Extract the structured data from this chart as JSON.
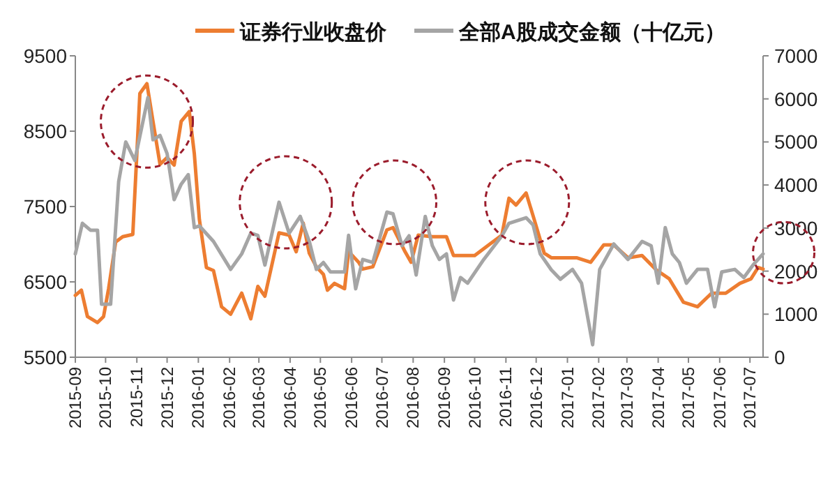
{
  "chart_data": {
    "type": "line",
    "legend": "top",
    "grid": false,
    "xlim": [
      "2015-09-01",
      "2017-07-14"
    ],
    "xticks": [
      "2015-09",
      "2015-10",
      "2015-11",
      "2015-12",
      "2016-01",
      "2016-02",
      "2016-03",
      "2016-04",
      "2016-05",
      "2016-06",
      "2016-07",
      "2016-08",
      "2016-09",
      "2016-10",
      "2016-11",
      "2016-12",
      "2017-01",
      "2017-02",
      "2017-03",
      "2017-04",
      "2017-05",
      "2017-06",
      "2017-07"
    ],
    "ylim": [
      5500,
      9500
    ],
    "yticks": [
      5500,
      6500,
      7500,
      8500,
      9500
    ],
    "y2lim": [
      0,
      7000
    ],
    "y2ticks": [
      0,
      1000,
      2000,
      3000,
      4000,
      5000,
      6000,
      7000
    ],
    "series": [
      {
        "name": "证券行业收盘价",
        "color": "#ed7d31",
        "x": [
          "2015-09-01",
          "2015-09-07",
          "2015-09-13",
          "2015-09-23",
          "2015-09-29",
          "2015-10-04",
          "2015-10-11",
          "2015-10-18",
          "2015-10-28",
          "2015-11-04",
          "2015-11-11",
          "2015-11-17",
          "2015-11-24",
          "2015-12-01",
          "2015-12-08",
          "2015-12-15",
          "2015-12-23",
          "2015-12-28",
          "2016-01-02",
          "2016-01-09",
          "2016-01-16",
          "2016-01-24",
          "2016-02-02",
          "2016-02-13",
          "2016-02-22",
          "2016-02-29",
          "2016-03-07",
          "2016-03-21",
          "2016-03-31",
          "2016-04-07",
          "2016-04-14",
          "2016-04-20",
          "2016-04-27",
          "2016-05-04",
          "2016-05-08",
          "2016-05-15",
          "2016-05-25",
          "2016-05-29",
          "2016-06-08",
          "2016-06-12",
          "2016-06-22",
          "2016-07-06",
          "2016-07-12",
          "2016-07-24",
          "2016-07-30",
          "2016-08-06",
          "2016-08-20",
          "2016-09-03",
          "2016-09-10",
          "2016-10-01",
          "2016-10-15",
          "2016-10-28",
          "2016-11-04",
          "2016-11-11",
          "2016-11-21",
          "2016-11-29",
          "2016-12-09",
          "2016-12-16",
          "2017-01-10",
          "2017-01-24",
          "2017-02-06",
          "2017-02-16",
          "2017-03-02",
          "2017-03-16",
          "2017-03-30",
          "2017-04-12",
          "2017-04-26",
          "2017-05-10",
          "2017-05-24",
          "2017-06-07",
          "2017-06-21",
          "2017-07-02",
          "2017-07-09",
          "2017-07-14"
        ],
        "values": [
          6320,
          6390,
          6040,
          5960,
          6040,
          6410,
          7030,
          7100,
          7130,
          9000,
          9130,
          8630,
          8060,
          8150,
          8050,
          8630,
          8760,
          8200,
          7330,
          6690,
          6650,
          6170,
          6070,
          6350,
          6010,
          6440,
          6310,
          7150,
          7120,
          6900,
          7280,
          6880,
          6700,
          6600,
          6390,
          6480,
          6410,
          6900,
          6760,
          6670,
          6700,
          7190,
          7220,
          6900,
          6760,
          7120,
          7100,
          7100,
          6850,
          6850,
          6990,
          7120,
          7610,
          7520,
          7680,
          7330,
          6880,
          6820,
          6820,
          6760,
          6990,
          6990,
          6820,
          6850,
          6660,
          6540,
          6230,
          6170,
          6350,
          6350,
          6480,
          6540,
          6690,
          6670
        ]
      },
      {
        "name": "全部A股成交金额（十亿元）",
        "color": "#a5a5a5",
        "axis": "y2",
        "x": [
          "2015-09-01",
          "2015-09-08",
          "2015-09-16",
          "2015-09-23",
          "2015-09-27",
          "2015-10-06",
          "2015-10-14",
          "2015-10-21",
          "2015-10-30",
          "2015-11-12",
          "2015-11-17",
          "2015-11-24",
          "2015-12-01",
          "2015-12-08",
          "2015-12-15",
          "2015-12-22",
          "2015-12-28",
          "2016-01-02",
          "2016-01-16",
          "2016-02-02",
          "2016-02-13",
          "2016-02-22",
          "2016-02-29",
          "2016-03-07",
          "2016-03-21",
          "2016-03-31",
          "2016-04-11",
          "2016-04-20",
          "2016-04-27",
          "2016-05-04",
          "2016-05-11",
          "2016-05-25",
          "2016-05-29",
          "2016-06-05",
          "2016-06-12",
          "2016-06-22",
          "2016-07-06",
          "2016-07-12",
          "2016-07-21",
          "2016-07-28",
          "2016-08-04",
          "2016-08-13",
          "2016-08-20",
          "2016-08-27",
          "2016-09-03",
          "2016-09-10",
          "2016-09-17",
          "2016-09-24",
          "2016-10-10",
          "2016-10-28",
          "2016-11-04",
          "2016-11-21",
          "2016-11-28",
          "2016-12-05",
          "2016-12-16",
          "2016-12-25",
          "2017-01-06",
          "2017-01-15",
          "2017-01-26",
          "2017-02-02",
          "2017-02-16",
          "2017-03-02",
          "2017-03-16",
          "2017-03-25",
          "2017-04-01",
          "2017-04-08",
          "2017-04-15",
          "2017-04-22",
          "2017-04-29",
          "2017-05-10",
          "2017-05-20",
          "2017-05-27",
          "2017-06-03",
          "2017-06-16",
          "2017-06-25",
          "2017-07-04",
          "2017-07-14"
        ],
        "values": [
          2400,
          3110,
          2950,
          2950,
          1230,
          1230,
          4080,
          5000,
          4570,
          6030,
          5050,
          5150,
          4730,
          3660,
          4020,
          4240,
          3010,
          3050,
          2690,
          2040,
          2400,
          2880,
          2830,
          2140,
          3600,
          2880,
          3270,
          2690,
          2040,
          2200,
          1980,
          1980,
          2830,
          1590,
          2270,
          2200,
          3370,
          3330,
          2590,
          2820,
          1910,
          3270,
          2590,
          2270,
          2400,
          1330,
          1850,
          1720,
          2270,
          2820,
          3110,
          3240,
          3070,
          2400,
          2030,
          1810,
          2040,
          1720,
          290,
          2040,
          2630,
          2270,
          2690,
          2590,
          1720,
          3010,
          2400,
          2200,
          1720,
          2040,
          2040,
          1170,
          1980,
          2040,
          1850,
          2140,
          2400
        ]
      }
    ]
  }
}
